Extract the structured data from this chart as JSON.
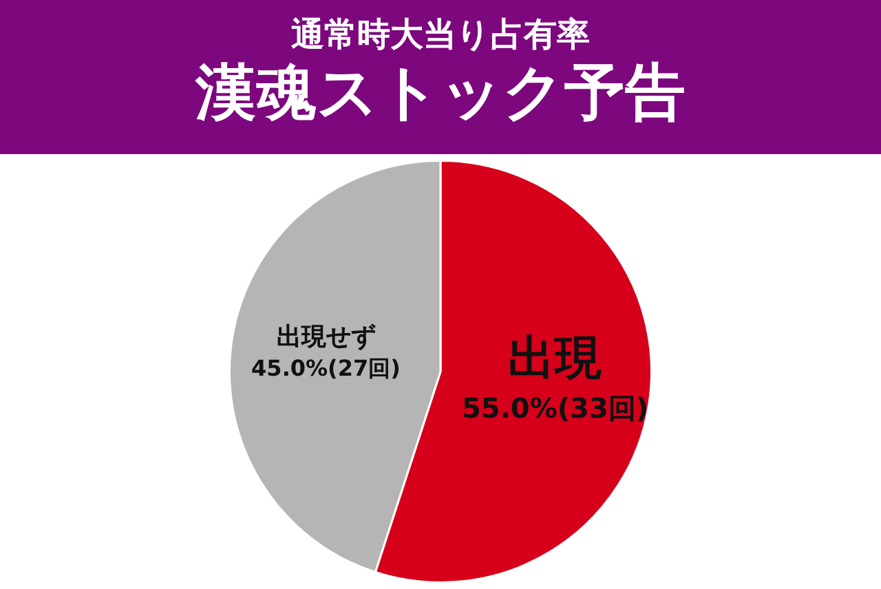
{
  "chart_data": {
    "type": "pie",
    "title": "通常時大当り占有率",
    "subtitle": "漢魂ストック予告",
    "categories": [
      "出現",
      "出現せず"
    ],
    "values": [
      55.0,
      45.0
    ],
    "colors": [
      "#d7001a",
      "#b5b5b6"
    ],
    "value_labels": [
      "55.0%(33回)",
      "45.0%(27回)"
    ],
    "legend": false
  }
}
